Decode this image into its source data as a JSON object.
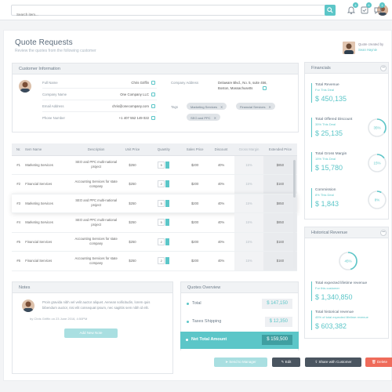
{
  "topbar": {
    "search_placeholder": "Search item...",
    "notifications": [
      {
        "icon": "bell-icon",
        "badge": "4"
      },
      {
        "icon": "tasks-icon",
        "badge": "6"
      },
      {
        "icon": "chat-icon",
        "badge": "1"
      }
    ],
    "accent": "#5cc6c8"
  },
  "page": {
    "title": "Quote Requests",
    "subtitle": "Review the quotes from the following customer",
    "creator_label": "Quote created by",
    "creator_name": "Sean Haynie"
  },
  "customer": {
    "header": "Customer Information",
    "full_name_label": "Full Name",
    "full_name": "Chris Griffin",
    "company_label": "Company Name",
    "company": "One Company LLC",
    "email_label": "Email Address",
    "email": "chris@onecompany.com",
    "phone_label": "Phone Number",
    "phone": "+1 407 552 149 022",
    "address_label": "Company Address",
    "address_line1": "Delaware Blvd., No. 5, suite 456,",
    "address_line2": "Boston, Massachusetts",
    "tags_label": "Tags",
    "tags": [
      "Marketing Services",
      "Financial Services",
      "SEO and PPC"
    ]
  },
  "table": {
    "headers": [
      "Nr.",
      "Item Name",
      "Description",
      "Unit Price",
      "Quantity",
      "Sales Price",
      "Discount",
      "Gross Margin",
      "Extended Price"
    ],
    "rows": [
      {
        "nr": "#1",
        "name": "Marketing Services",
        "desc": "SEO and PPC multi-national project",
        "unit": "$250",
        "qty": "5",
        "sales": "$200",
        "disc": "40%",
        "gm": "15%",
        "ext": "$850"
      },
      {
        "nr": "#2",
        "name": "Financial Services",
        "desc": "Accounting Services for state company",
        "unit": "$250",
        "qty": "2",
        "sales": "$200",
        "disc": "40%",
        "gm": "15%",
        "ext": "$160"
      },
      {
        "nr": "#3",
        "name": "Marketing Services",
        "desc": "SEO and PPC multi-national project",
        "unit": "$250",
        "qty": "5",
        "sales": "$200",
        "disc": "40%",
        "gm": "15%",
        "ext": "$850"
      },
      {
        "nr": "#4",
        "name": "Marketing Services",
        "desc": "SEO and PPC multi-national project",
        "unit": "$250",
        "qty": "5",
        "sales": "$200",
        "disc": "40%",
        "gm": "15%",
        "ext": "$850"
      },
      {
        "nr": "#5",
        "name": "Financial Services",
        "desc": "Accounting Services for state company",
        "unit": "$250",
        "qty": "2",
        "sales": "$200",
        "disc": "40%",
        "gm": "15%",
        "ext": "$160"
      },
      {
        "nr": "#6",
        "name": "Financial Services",
        "desc": "Accounting Services for state company",
        "unit": "$250",
        "qty": "2",
        "sales": "$200",
        "disc": "40%",
        "gm": "15%",
        "ext": "$160"
      }
    ]
  },
  "notes": {
    "header": "Notes",
    "text": "Proin gravida nibh vel velit auctor aliquet. Aenean sollicitudin, lorem quis bibendum auctor, nisi elit consequat ipsum, nec sagittis sem nibh id elit.",
    "meta": "by Chris Griffin on 23 June 2016, 4:50PM",
    "add_button": "Add New Note"
  },
  "overview": {
    "header": "Quotes Overview",
    "total_label": "Total",
    "total": "$ 147,150",
    "taxes_label": "Taxes Shipping",
    "taxes": "$ 12,350",
    "net_label": "Net Total Amount",
    "net": "$ 159,500"
  },
  "financials": {
    "header": "Financials",
    "items": [
      {
        "title": "Total Revenue",
        "sub": "For This Deal",
        "value": "$ 450,135",
        "ring": null
      },
      {
        "title": "Total Offered Discount",
        "sub": "35% This Deal",
        "value": "$ 25,135",
        "ring": "35%",
        "pct": 35
      },
      {
        "title": "Total Gross Margin",
        "sub": "15% This Deal",
        "value": "$ 15,780",
        "ring": "15%",
        "pct": 15
      },
      {
        "title": "Commission",
        "sub": "8% This Deal",
        "value": "$ 1,843",
        "ring": "8%",
        "pct": 8
      }
    ]
  },
  "historical": {
    "header": "Historical Revenue",
    "ring": "45%",
    "pct": 45,
    "expected_title": "Total expected lifetime revenue",
    "expected_sub": "For this customer",
    "expected_value": "$ 1,340,850",
    "hist_title": "Total historical revenue",
    "hist_sub": "45% of total expected lifetime revenue",
    "hist_value": "$ 603,382"
  },
  "actions": {
    "send": "Send to Manager",
    "edit": "Edit",
    "share": "Share with Customer",
    "delete": "Delete",
    "delete_color": "#ef6b5a",
    "edit_color": "#4a5560"
  }
}
